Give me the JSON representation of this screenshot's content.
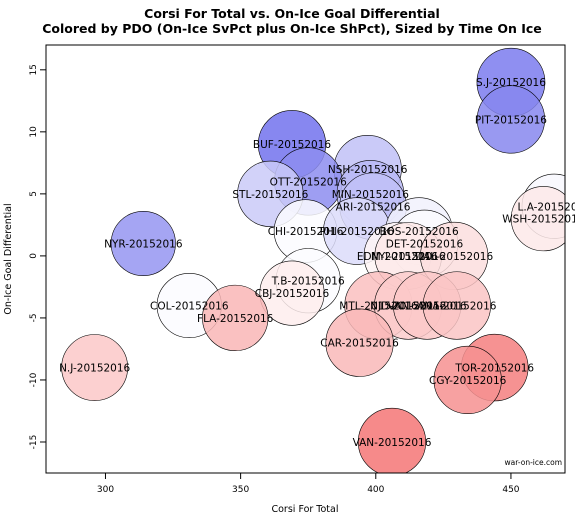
{
  "chart_data": {
    "type": "scatter",
    "title": "Corsi For Total vs. On-Ice Goal Differential",
    "subtitle": "Colored by PDO (On-Ice SvPct plus On-Ice ShPct), Sized by Time On Ice",
    "xlabel": "Corsi For Total",
    "ylabel": "On-Ice Goal Differential",
    "xlim": [
      278,
      470
    ],
    "ylim": [
      -17.5,
      17
    ],
    "xticks": [
      300,
      350,
      400,
      450
    ],
    "yticks": [
      -15,
      -10,
      -5,
      0,
      5,
      10,
      15
    ],
    "grid": false,
    "watermark": "war-on-ice.com",
    "colors": {
      "neutral": "#ffffff",
      "positive": "#4f4fe8",
      "negative": "#f04848"
    },
    "points": [
      {
        "label": "S.J-20152016",
        "x": 450,
        "y": 14,
        "toi": 1.0,
        "pdo": 0.75
      },
      {
        "label": "PIT-20152016",
        "x": 450,
        "y": 11,
        "toi": 0.98,
        "pdo": 0.68
      },
      {
        "label": "BUF-20152016",
        "x": 369,
        "y": 9,
        "toi": 0.98,
        "pdo": 0.8
      },
      {
        "label": "NSH-20152016",
        "x": 397,
        "y": 7,
        "toi": 0.98,
        "pdo": 0.35
      },
      {
        "label": "OTT-20152016",
        "x": 375,
        "y": 6,
        "toi": 0.98,
        "pdo": 0.65
      },
      {
        "label": "STL-20152016",
        "x": 361,
        "y": 5,
        "toi": 0.9,
        "pdo": 0.3
      },
      {
        "label": "MIN-20152016",
        "x": 398,
        "y": 5,
        "toi": 0.95,
        "pdo": 0.4
      },
      {
        "label": "ARI-20152016",
        "x": 399,
        "y": 4,
        "toi": 0.95,
        "pdo": 0.35
      },
      {
        "label": "L.A-20152016",
        "x": 466,
        "y": 4,
        "toi": 0.85,
        "pdo": 0.04
      },
      {
        "label": "WSH-20152016",
        "x": 462,
        "y": 3,
        "toi": 0.85,
        "pdo": -0.12
      },
      {
        "label": "CHI-20152016",
        "x": 374,
        "y": 2,
        "toi": 0.78,
        "pdo": 0.02
      },
      {
        "label": "PHI-20152016",
        "x": 393,
        "y": 2,
        "toi": 0.95,
        "pdo": 0.2
      },
      {
        "label": "BOS-20152016",
        "x": 416,
        "y": 2,
        "toi": 0.95,
        "pdo": 0.08
      },
      {
        "label": "DET-20152016",
        "x": 418,
        "y": 1,
        "toi": 0.95,
        "pdo": 0.03
      },
      {
        "label": "EDM-20152016",
        "x": 408,
        "y": 0,
        "toi": 0.95,
        "pdo": -0.06
      },
      {
        "label": "NYI-20152016",
        "x": 412,
        "y": 0,
        "toi": 0.95,
        "pdo": -0.12
      },
      {
        "label": "DAL-20152016",
        "x": 429,
        "y": 0,
        "toi": 0.98,
        "pdo": -0.18
      },
      {
        "label": "NYR-20152016",
        "x": 314,
        "y": 1,
        "toi": 0.85,
        "pdo": 0.6
      },
      {
        "label": "T.B-20152016",
        "x": 375,
        "y": -2,
        "toi": 0.85,
        "pdo": 0.02
      },
      {
        "label": "CBJ-20152016",
        "x": 369,
        "y": -3,
        "toi": 0.85,
        "pdo": -0.1
      },
      {
        "label": "COL-20152016",
        "x": 331,
        "y": -4,
        "toi": 0.85,
        "pdo": 0.02
      },
      {
        "label": "MTL-20152016",
        "x": 401,
        "y": -4,
        "toi": 0.98,
        "pdo": -0.35
      },
      {
        "label": "NJD-20152016",
        "x": 412,
        "y": -4,
        "toi": 0.98,
        "pdo": -0.28
      },
      {
        "label": "VAN-20152016",
        "x": 419,
        "y": -4,
        "toi": 0.98,
        "pdo": -0.3
      },
      {
        "label": "ANA-20152016",
        "x": 430,
        "y": -4,
        "toi": 0.98,
        "pdo": -0.32
      },
      {
        "label": "FLA-20152016",
        "x": 348,
        "y": -5,
        "toi": 0.9,
        "pdo": -0.4
      },
      {
        "label": "CAR-20152016",
        "x": 394,
        "y": -7,
        "toi": 0.98,
        "pdo": -0.38
      },
      {
        "label": "N.J-20152016",
        "x": 296,
        "y": -9,
        "toi": 0.92,
        "pdo": -0.3
      },
      {
        "label": "TOR-20152016",
        "x": 444,
        "y": -9,
        "toi": 0.95,
        "pdo": -0.7
      },
      {
        "label": "CGY-20152016",
        "x": 434,
        "y": -10,
        "toi": 0.98,
        "pdo": -0.6
      },
      {
        "label": "VAN-20152016",
        "x": 406,
        "y": -15,
        "toi": 0.98,
        "pdo": -0.75
      }
    ]
  }
}
